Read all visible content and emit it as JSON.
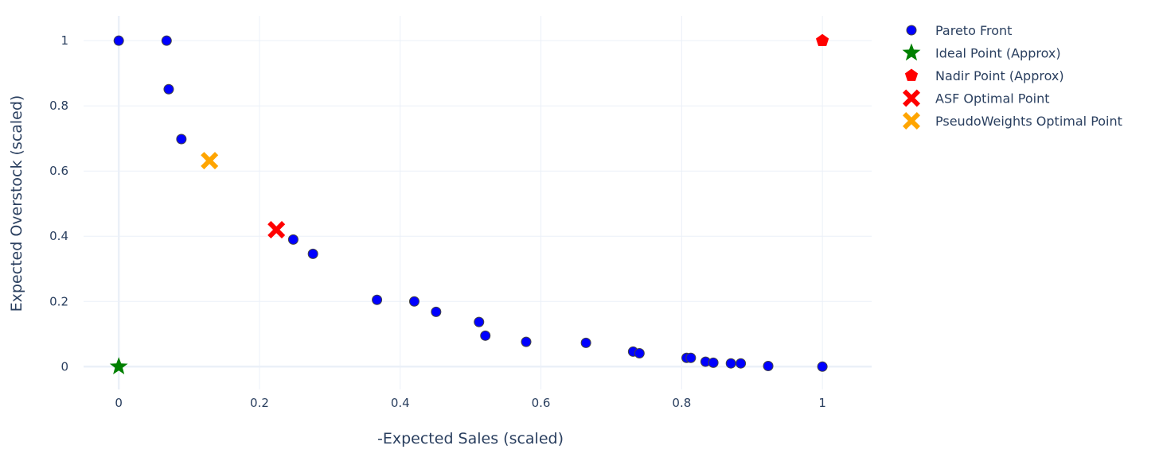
{
  "chart_data": {
    "type": "scatter",
    "title": "",
    "xlabel": "-Expected Sales (scaled)",
    "ylabel": "Expected Overstock (scaled)",
    "xlim": [
      -0.05,
      1.07
    ],
    "ylim": [
      -0.07,
      1.076
    ],
    "xticks": [
      0,
      0.2,
      0.4,
      0.6,
      0.8,
      1
    ],
    "yticks": [
      0,
      0.2,
      0.4,
      0.6,
      0.8,
      1
    ],
    "xtick_labels": [
      "0",
      "0.2",
      "0.4",
      "0.6",
      "0.8",
      "1"
    ],
    "ytick_labels": [
      "0",
      "0.2",
      "0.4",
      "0.6",
      "0.8",
      "1"
    ],
    "grid": true,
    "legend_placement": "top-right outside",
    "series": [
      {
        "name": "Pareto Front",
        "marker": "circle",
        "color": "#0000ff",
        "x": [
          0,
          0.068,
          0.071,
          0.089,
          0.248,
          0.276,
          0.367,
          0.42,
          0.451,
          0.512,
          0.521,
          0.579,
          0.664,
          0.731,
          0.74,
          0.807,
          0.813,
          0.834,
          0.845,
          0.87,
          0.884,
          0.923,
          1
        ],
        "y": [
          1,
          1,
          0.851,
          0.698,
          0.39,
          0.346,
          0.205,
          0.2,
          0.168,
          0.137,
          0.095,
          0.076,
          0.073,
          0.046,
          0.041,
          0.027,
          0.027,
          0.015,
          0.012,
          0.01,
          0.01,
          0.002,
          0
        ]
      },
      {
        "name": "Ideal Point (Approx)",
        "marker": "star",
        "color": "#008000",
        "x": [
          0
        ],
        "y": [
          0
        ]
      },
      {
        "name": "Nadir Point (Approx)",
        "marker": "pentagon",
        "color": "#ff0000",
        "x": [
          1
        ],
        "y": [
          1
        ]
      },
      {
        "name": "ASF Optimal Point",
        "marker": "x",
        "color": "#ff0000",
        "x": [
          0.224
        ],
        "y": [
          0.42
        ]
      },
      {
        "name": "PseudoWeights  Optimal Point",
        "marker": "x",
        "color": "#ffa500",
        "x": [
          0.129
        ],
        "y": [
          0.632
        ]
      }
    ]
  }
}
